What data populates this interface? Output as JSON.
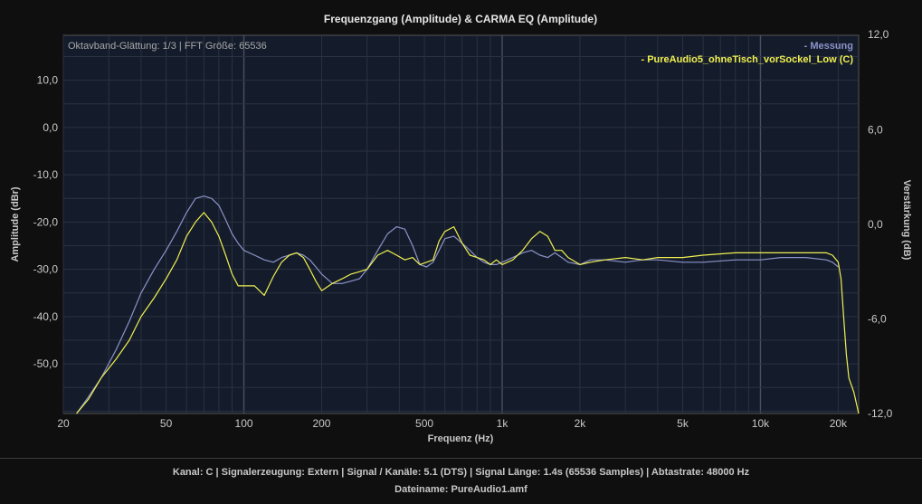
{
  "chart_data": {
    "type": "line",
    "title": "Frequenzgang (Amplitude) & CARMA EQ (Amplitude)",
    "annotation": "Oktavband-Glättung: 1/3 | FFT Größe: 65536",
    "xlabel": "Frequenz (Hz)",
    "ylabel": "Amplitude (dBr)",
    "y2label": "Verstärkung (dB)",
    "x_scale": "log",
    "xlim": [
      20,
      24000
    ],
    "ylim": [
      -60.5,
      19.5
    ],
    "y2lim": [
      -12,
      12
    ],
    "x_ticks": [
      20,
      50,
      100,
      200,
      500,
      1000,
      2000,
      5000,
      10000,
      20000
    ],
    "x_tick_labels": [
      "20",
      "50",
      "100",
      "200",
      "500",
      "1k",
      "2k",
      "5k",
      "10k",
      "20k"
    ],
    "y_ticks": [
      10,
      0,
      -10,
      -20,
      -30,
      -40,
      -50
    ],
    "y_tick_labels": [
      "10,0",
      "0,0",
      "-10,0",
      "-20,0",
      "-30,0",
      "-40,0",
      "-50,0"
    ],
    "y2_ticks": [
      12,
      6,
      0,
      -6,
      -12
    ],
    "y2_tick_labels": [
      "12,0",
      "6,0",
      "0,0",
      "-6,0",
      "-12,0"
    ],
    "grid": true,
    "legend_position": "top-right",
    "series": [
      {
        "name": "- Messung",
        "color": "#8c93c9",
        "x": [
          22.5,
          25,
          28,
          32,
          36,
          40,
          45,
          50,
          55,
          60,
          65,
          70,
          75,
          80,
          85,
          90,
          95,
          100,
          110,
          120,
          130,
          140,
          150,
          160,
          170,
          180,
          190,
          200,
          220,
          240,
          260,
          280,
          300,
          330,
          360,
          390,
          420,
          450,
          480,
          510,
          540,
          570,
          600,
          650,
          700,
          750,
          800,
          850,
          900,
          950,
          1000,
          1100,
          1200,
          1300,
          1400,
          1500,
          1600,
          1700,
          1800,
          2000,
          2200,
          2500,
          3000,
          3500,
          4000,
          5000,
          6000,
          8000,
          10000,
          12000,
          15000,
          18000,
          19000,
          20000
        ],
        "y": [
          -60.5,
          -57,
          -53,
          -47,
          -41,
          -35,
          -30,
          -26,
          -22,
          -18,
          -15,
          -14.5,
          -15,
          -16.5,
          -19.5,
          -22.5,
          -24.5,
          -26,
          -27,
          -28,
          -28.5,
          -27.5,
          -27,
          -26.5,
          -27,
          -28,
          -29.5,
          -31,
          -33,
          -33,
          -32.5,
          -32,
          -30,
          -26,
          -22.5,
          -21,
          -21.5,
          -25,
          -29,
          -29.5,
          -28.5,
          -26,
          -23.5,
          -23,
          -24.5,
          -26,
          -27.5,
          -28.5,
          -29,
          -29,
          -28.5,
          -27.5,
          -26.5,
          -26,
          -27,
          -27.5,
          -26.5,
          -27.5,
          -28.5,
          -29,
          -28,
          -28,
          -28.5,
          -28,
          -28,
          -28.5,
          -28.5,
          -28,
          -28,
          -27.5,
          -27.5,
          -28,
          -28.5,
          -29.5
        ]
      },
      {
        "name": "- PureAudio5_ohneTisch_vorSockel_Low (C)",
        "color": "#f0f050",
        "x": [
          22.5,
          25,
          28,
          32,
          36,
          40,
          45,
          50,
          55,
          60,
          65,
          70,
          75,
          80,
          85,
          90,
          95,
          100,
          110,
          120,
          130,
          140,
          150,
          160,
          170,
          180,
          190,
          200,
          220,
          240,
          260,
          280,
          300,
          330,
          360,
          390,
          420,
          450,
          480,
          510,
          540,
          570,
          600,
          650,
          700,
          750,
          800,
          850,
          900,
          950,
          1000,
          1100,
          1200,
          1300,
          1400,
          1500,
          1600,
          1700,
          1800,
          2000,
          2200,
          2500,
          3000,
          3500,
          4000,
          5000,
          6000,
          8000,
          10000,
          12000,
          15000,
          18000,
          19000,
          20000,
          20500,
          21000,
          21500,
          22000,
          23000,
          24000
        ],
        "y": [
          -60.5,
          -57.5,
          -53,
          -49,
          -45,
          -40,
          -36,
          -32,
          -28,
          -23,
          -20,
          -18,
          -20,
          -23,
          -27,
          -31,
          -33.5,
          -33.5,
          -33.5,
          -35.5,
          -31.5,
          -28.5,
          -27,
          -26.5,
          -27.5,
          -30,
          -32.5,
          -34.5,
          -33,
          -32,
          -31,
          -30.5,
          -30,
          -27,
          -26,
          -27,
          -28,
          -27.5,
          -29,
          -28.5,
          -28,
          -24,
          -22,
          -21,
          -24.5,
          -27,
          -27.5,
          -28,
          -29,
          -28,
          -29,
          -28,
          -26,
          -23.5,
          -22,
          -23,
          -26,
          -26,
          -27.5,
          -29,
          -28.5,
          -28,
          -27.5,
          -28,
          -27.5,
          -27.5,
          -27,
          -26.5,
          -26.5,
          -26.5,
          -26.5,
          -26.5,
          -27,
          -28.5,
          -32,
          -40,
          -48,
          -53,
          -56,
          -60.5
        ]
      }
    ]
  },
  "footer": {
    "line1": "Kanal: C  |  Signalerzeugung: Extern   |  Signal / Kanäle: 5.1 (DTS)  |  Signal Länge: 1.4s (65536 Samples)  |  Abtastrate: 48000 Hz",
    "line2": "Dateiname: PureAudio1.amf"
  }
}
